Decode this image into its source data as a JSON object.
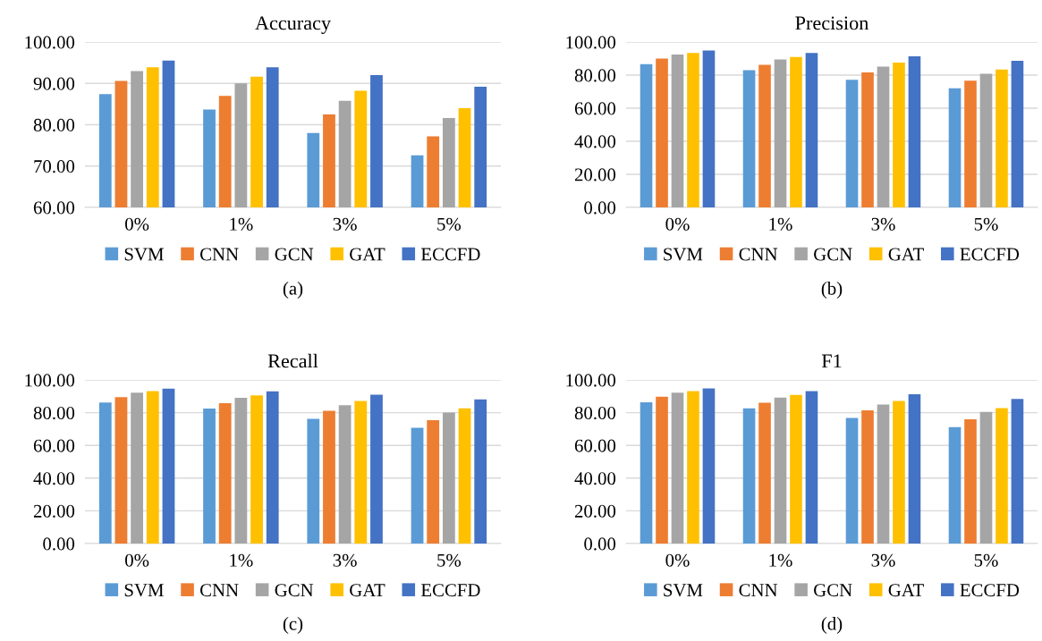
{
  "chart_data": [
    {
      "type": "bar",
      "title": "Accuracy",
      "categories": [
        "0%",
        "1%",
        "3%",
        "5%"
      ],
      "ylim": [
        60,
        100
      ],
      "yticks": [
        {
          "value": 60,
          "label": "60.00"
        },
        {
          "value": 70,
          "label": "70.00"
        },
        {
          "value": 80,
          "label": "80.00"
        },
        {
          "value": 90,
          "label": "90.00"
        },
        {
          "value": 100,
          "label": "100.00"
        }
      ],
      "grid": "y",
      "legend": "bottom",
      "annotations": [
        "(a)"
      ],
      "series": [
        {
          "name": "SVM",
          "color": "#5b9bd5",
          "values": [
            87.4,
            83.7,
            78.0,
            72.6
          ]
        },
        {
          "name": "CNN",
          "color": "#ed7d31",
          "values": [
            90.6,
            87.0,
            82.5,
            77.2
          ]
        },
        {
          "name": "GCN",
          "color": "#a5a5a5",
          "values": [
            93.0,
            90.0,
            85.8,
            81.6
          ]
        },
        {
          "name": "GAT",
          "color": "#ffc000",
          "values": [
            93.9,
            91.6,
            88.2,
            84.0
          ]
        },
        {
          "name": "ECCFD",
          "color": "#4472c4",
          "values": [
            95.5,
            93.9,
            92.0,
            89.2
          ]
        }
      ]
    },
    {
      "type": "bar",
      "title": "Precision",
      "categories": [
        "0%",
        "1%",
        "3%",
        "5%"
      ],
      "ylim": [
        0,
        100
      ],
      "yticks": [
        {
          "value": 0,
          "label": "0.00"
        },
        {
          "value": 20,
          "label": "20.00"
        },
        {
          "value": 40,
          "label": "40.00"
        },
        {
          "value": 60,
          "label": "60.00"
        },
        {
          "value": 80,
          "label": "80.00"
        },
        {
          "value": 100,
          "label": "100.00"
        }
      ],
      "grid": "y",
      "legend": "bottom",
      "annotations": [
        "(b)"
      ],
      "series": [
        {
          "name": "SVM",
          "color": "#5b9bd5",
          "values": [
            86.6,
            83.0,
            77.2,
            72.0
          ]
        },
        {
          "name": "CNN",
          "color": "#ed7d31",
          "values": [
            90.0,
            86.2,
            81.6,
            76.6
          ]
        },
        {
          "name": "GCN",
          "color": "#a5a5a5",
          "values": [
            92.4,
            89.4,
            85.2,
            80.8
          ]
        },
        {
          "name": "GAT",
          "color": "#ffc000",
          "values": [
            93.4,
            91.0,
            87.6,
            83.4
          ]
        },
        {
          "name": "ECCFD",
          "color": "#4472c4",
          "values": [
            94.8,
            93.4,
            91.4,
            88.6
          ]
        }
      ]
    },
    {
      "type": "bar",
      "title": "Recall",
      "categories": [
        "0%",
        "1%",
        "3%",
        "5%"
      ],
      "ylim": [
        0,
        100
      ],
      "yticks": [
        {
          "value": 0,
          "label": "0.00"
        },
        {
          "value": 20,
          "label": "20.00"
        },
        {
          "value": 40,
          "label": "40.00"
        },
        {
          "value": 60,
          "label": "60.00"
        },
        {
          "value": 80,
          "label": "80.00"
        },
        {
          "value": 100,
          "label": "100.00"
        }
      ],
      "grid": "y",
      "legend": "bottom",
      "annotations": [
        "(c)"
      ],
      "series": [
        {
          "name": "SVM",
          "color": "#5b9bd5",
          "values": [
            86.2,
            82.5,
            76.2,
            70.8
          ]
        },
        {
          "name": "CNN",
          "color": "#ed7d31",
          "values": [
            89.5,
            85.8,
            81.1,
            75.4
          ]
        },
        {
          "name": "GCN",
          "color": "#a5a5a5",
          "values": [
            92.2,
            89.1,
            84.6,
            80.1
          ]
        },
        {
          "name": "GAT",
          "color": "#ffc000",
          "values": [
            93.2,
            90.6,
            87.1,
            82.7
          ]
        },
        {
          "name": "ECCFD",
          "color": "#4472c4",
          "values": [
            94.7,
            93.0,
            91.0,
            88.1
          ]
        }
      ]
    },
    {
      "type": "bar",
      "title": "F1",
      "categories": [
        "0%",
        "1%",
        "3%",
        "5%"
      ],
      "ylim": [
        0,
        100
      ],
      "yticks": [
        {
          "value": 0,
          "label": "0.00"
        },
        {
          "value": 20,
          "label": "20.00"
        },
        {
          "value": 40,
          "label": "40.00"
        },
        {
          "value": 60,
          "label": "60.00"
        },
        {
          "value": 80,
          "label": "80.00"
        },
        {
          "value": 100,
          "label": "100.00"
        }
      ],
      "grid": "y",
      "legend": "bottom",
      "annotations": [
        "(d)"
      ],
      "series": [
        {
          "name": "SVM",
          "color": "#5b9bd5",
          "values": [
            86.4,
            82.6,
            76.8,
            71.2
          ]
        },
        {
          "name": "CNN",
          "color": "#ed7d31",
          "values": [
            89.8,
            86.0,
            81.4,
            76.0
          ]
        },
        {
          "name": "GCN",
          "color": "#a5a5a5",
          "values": [
            92.2,
            89.2,
            85.0,
            80.4
          ]
        },
        {
          "name": "GAT",
          "color": "#ffc000",
          "values": [
            93.2,
            90.8,
            87.2,
            82.8
          ]
        },
        {
          "name": "ECCFD",
          "color": "#4472c4",
          "values": [
            94.8,
            93.2,
            91.2,
            88.4
          ]
        }
      ]
    }
  ]
}
